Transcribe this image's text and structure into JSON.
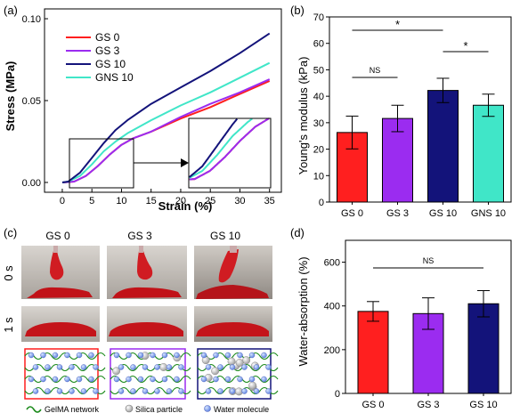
{
  "colors": {
    "GS 0": "#ff1f1f",
    "GS 3": "#9b2cf0",
    "GS 10": "#13137a",
    "GNS 10": "#40e6c8",
    "axis": "#000000"
  },
  "chart_data": [
    {
      "panel": "(a)",
      "type": "line",
      "xlabel": "Strain (%)",
      "ylabel": "Stress (MPa)",
      "xlim": [
        -3,
        37
      ],
      "ylim": [
        -0.006,
        0.106
      ],
      "xticks": [
        0,
        5,
        10,
        15,
        20,
        25,
        30,
        35
      ],
      "xtick_labels": [
        "0",
        "5",
        "10",
        "15",
        "20",
        "25",
        "30",
        "35"
      ],
      "yticks": [
        0.0,
        0.05,
        0.1
      ],
      "ytick_labels": [
        "0.00",
        "0.05",
        "0.10"
      ],
      "legend": "top-left",
      "series": [
        {
          "name": "GS 0",
          "x": [
            0,
            2,
            4,
            6,
            8,
            10,
            12,
            15,
            20,
            25,
            30,
            35
          ],
          "y": [
            0,
            0.0005,
            0.004,
            0.01,
            0.017,
            0.023,
            0.027,
            0.031,
            0.039,
            0.046,
            0.054,
            0.062
          ]
        },
        {
          "name": "GS 3",
          "x": [
            0,
            2,
            4,
            6,
            8,
            10,
            12,
            15,
            20,
            25,
            30,
            35
          ],
          "y": [
            0,
            0.0005,
            0.004,
            0.01,
            0.017,
            0.023,
            0.027,
            0.031,
            0.04,
            0.048,
            0.055,
            0.063
          ]
        },
        {
          "name": "GS 10",
          "x": [
            0,
            1,
            3,
            5,
            7,
            9,
            11,
            15,
            20,
            25,
            30,
            35
          ],
          "y": [
            0,
            0.0005,
            0.006,
            0.015,
            0.024,
            0.032,
            0.038,
            0.048,
            0.058,
            0.068,
            0.079,
            0.091
          ]
        },
        {
          "name": "GNS 10",
          "x": [
            0,
            1,
            3,
            5,
            7,
            9,
            11,
            15,
            20,
            25,
            30,
            35
          ],
          "y": [
            0,
            0.0005,
            0.004,
            0.011,
            0.019,
            0.025,
            0.03,
            0.038,
            0.047,
            0.055,
            0.064,
            0.073
          ]
        }
      ]
    },
    {
      "panel": "(b)",
      "type": "bar",
      "categories": [
        "GS 0",
        "GS 3",
        "GS 10",
        "GNS 10"
      ],
      "values": [
        26.3,
        31.6,
        42.2,
        36.6
      ],
      "errors": [
        6.2,
        5.0,
        4.6,
        4.2
      ],
      "ylabel": "Young's modulus (kPa)",
      "ylim": [
        0,
        70
      ],
      "yticks": [
        0,
        10,
        20,
        30,
        40,
        50,
        60,
        70
      ],
      "annotations": [
        {
          "from": "GS 0",
          "to": "GS 3",
          "label": "NS"
        },
        {
          "from": "GS 0",
          "to": "GS 10",
          "label": "*"
        },
        {
          "from": "GS 10",
          "to": "GNS 10",
          "label": "*"
        }
      ]
    },
    {
      "panel": "(d)",
      "type": "bar",
      "categories": [
        "GS 0",
        "GS 3",
        "GS 10"
      ],
      "values": [
        375,
        365,
        410
      ],
      "errors": [
        45,
        72,
        60
      ],
      "ylabel": "Water-absorption (%)",
      "ylim": [
        0,
        700
      ],
      "yticks": [
        0,
        200,
        400,
        600
      ],
      "annotations": [
        {
          "from": "GS 0",
          "to": "GS 10",
          "label": "NS"
        }
      ]
    }
  ],
  "panel_c": {
    "label": "(c)",
    "columns": [
      "GS 0",
      "GS 3",
      "GS 10"
    ],
    "rows": [
      "0 s",
      "1 s"
    ],
    "legend": [
      "GelMA network",
      "Silica particle",
      "Water molecule"
    ]
  }
}
